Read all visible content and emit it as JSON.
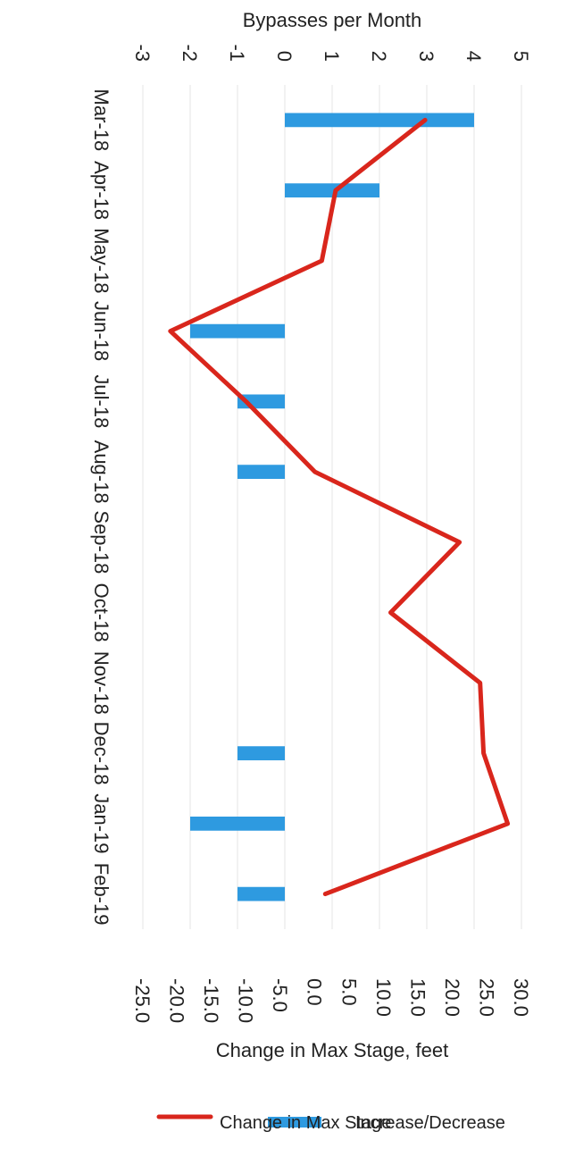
{
  "chart_data": {
    "type": "bar",
    "categories": [
      "Mar-18",
      "Apr-18",
      "May-18",
      "Jun-18",
      "Jul-18",
      "Aug-18",
      "Sep-18",
      "Oct-18",
      "Nov-18",
      "Dec-18",
      "Jan-19",
      "Feb-19"
    ],
    "series": [
      {
        "name": "Increase/Decrease",
        "type": "bar",
        "axis": "left",
        "color": "#2e9ae0",
        "values": [
          4,
          2,
          0,
          -2,
          -1,
          -1,
          0,
          0,
          0,
          -1,
          -2,
          -1
        ]
      },
      {
        "name": "Change in Max Stage",
        "type": "line",
        "axis": "right",
        "color": "#d9261c",
        "values": [
          16.0,
          3.0,
          1.0,
          -21.0,
          -10.0,
          0.0,
          21.0,
          11.0,
          24.0,
          24.5,
          28.0,
          1.5
        ]
      }
    ],
    "ylabel": "Bypasses per Month",
    "y2label": "Change in Max Stage, feet",
    "ylim": [
      -3,
      5
    ],
    "y2lim": [
      -25,
      30
    ],
    "yticks": [
      "5",
      "4",
      "3",
      "2",
      "1",
      "0",
      "-1",
      "-2",
      "-3"
    ],
    "y2ticks": [
      "30.0",
      "25.0",
      "20.0",
      "15.0",
      "10.0",
      "5.0",
      "0.0",
      "-5.0",
      "-10.0",
      "-15.0",
      "-20.0",
      "-25.0"
    ],
    "grid": true,
    "legend_position": "right",
    "orientation": "rotated 90° clockwise"
  }
}
